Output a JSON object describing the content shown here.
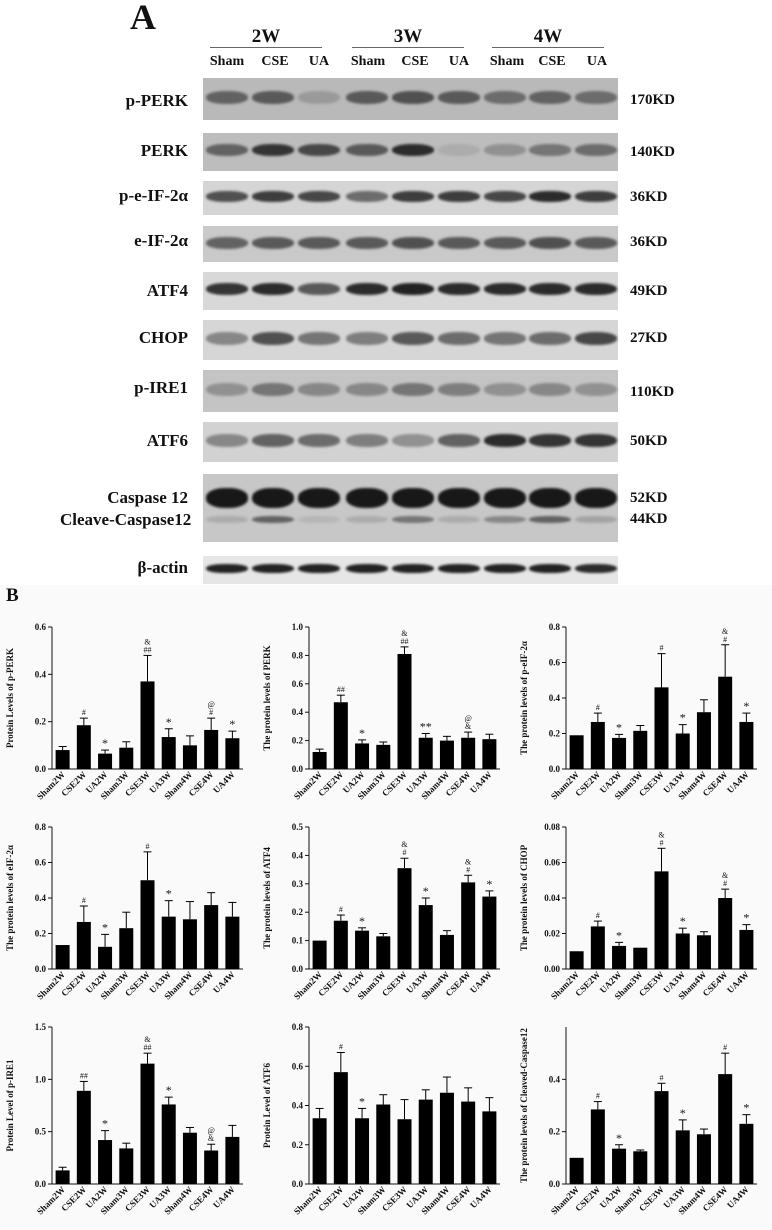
{
  "panels": {
    "a": "A",
    "b": "B"
  },
  "blot": {
    "weeks": [
      "2W",
      "3W",
      "4W"
    ],
    "groups": [
      "Sham",
      "CSE",
      "UA",
      "Sham",
      "CSE",
      "UA",
      "Sham",
      "CSE",
      "UA"
    ],
    "rows": [
      {
        "protein": "p-PERK",
        "kd": "170KD",
        "intensity": [
          0.55,
          0.6,
          0.25,
          0.6,
          0.65,
          0.6,
          0.5,
          0.55,
          0.5
        ]
      },
      {
        "protein": "PERK",
        "kd": "140KD",
        "intensity": [
          0.55,
          0.8,
          0.7,
          0.6,
          0.85,
          0.15,
          0.3,
          0.45,
          0.5
        ]
      },
      {
        "protein": "p-e-IF-2α",
        "kd": "36KD",
        "intensity": [
          0.65,
          0.75,
          0.7,
          0.5,
          0.75,
          0.75,
          0.7,
          0.85,
          0.75
        ]
      },
      {
        "protein": "e-IF-2α",
        "kd": "36KD",
        "intensity": [
          0.55,
          0.6,
          0.6,
          0.6,
          0.65,
          0.6,
          0.6,
          0.65,
          0.6
        ]
      },
      {
        "protein": "ATF4",
        "kd": "49KD",
        "intensity": [
          0.8,
          0.85,
          0.6,
          0.85,
          0.9,
          0.85,
          0.85,
          0.85,
          0.85
        ]
      },
      {
        "protein": "CHOP",
        "kd": "27KD",
        "intensity": [
          0.35,
          0.65,
          0.45,
          0.4,
          0.6,
          0.5,
          0.45,
          0.5,
          0.7
        ]
      },
      {
        "protein": "p-IRE1",
        "kd": "110KD",
        "intensity": [
          0.3,
          0.45,
          0.35,
          0.35,
          0.45,
          0.4,
          0.3,
          0.35,
          0.3
        ]
      },
      {
        "protein": "ATF6",
        "kd": "50KD",
        "intensity": [
          0.35,
          0.55,
          0.5,
          0.4,
          0.3,
          0.55,
          0.85,
          0.8,
          0.8
        ]
      },
      {
        "protein": "Caspase 12",
        "kd": "52KD",
        "intensity": [
          0.95,
          0.95,
          0.95,
          0.95,
          0.95,
          0.95,
          0.95,
          0.95,
          0.95
        ]
      },
      {
        "protein": "Cleave-Caspase12",
        "kd": "44KD",
        "intensity": [
          0.15,
          0.55,
          0.1,
          0.15,
          0.45,
          0.15,
          0.35,
          0.55,
          0.2
        ]
      },
      {
        "protein": "β-actin",
        "kd": "",
        "intensity": [
          0.9,
          0.9,
          0.9,
          0.9,
          0.9,
          0.9,
          0.9,
          0.9,
          0.85
        ]
      }
    ]
  },
  "chart_data": [
    {
      "type": "bar",
      "ylabel": "Protein Levels of p-PERK",
      "ylim": [
        0,
        0.6
      ],
      "yticks": [
        "0.0",
        "0.2",
        "0.4",
        "0.6"
      ],
      "categories": [
        "Sham2W",
        "CSE2W",
        "UA2W",
        "Sham3W",
        "CSE3W",
        "UA3W",
        "Sham4W",
        "CSE4W",
        "UA4W"
      ],
      "values": [
        0.08,
        0.185,
        0.065,
        0.09,
        0.37,
        0.135,
        0.1,
        0.165,
        0.13
      ],
      "errors": [
        0.015,
        0.03,
        0.015,
        0.025,
        0.11,
        0.035,
        0.04,
        0.05,
        0.03
      ],
      "annotations": [
        "",
        "#",
        "*",
        "",
        "&\n##",
        "*",
        "",
        "@\n#",
        "*"
      ]
    },
    {
      "type": "bar",
      "ylabel": "The protein levels of PERK",
      "ylim": [
        0,
        1.0
      ],
      "yticks": [
        "0.0",
        "0.2",
        "0.4",
        "0.6",
        "0.8",
        "1.0"
      ],
      "categories": [
        "Sham2W",
        "CSE2W",
        "UA2W",
        "Sham3W",
        "CSE3W",
        "UA3W",
        "Sham4W",
        "CSE4W",
        "UA4W"
      ],
      "values": [
        0.12,
        0.47,
        0.18,
        0.17,
        0.81,
        0.22,
        0.2,
        0.22,
        0.21
      ],
      "errors": [
        0.02,
        0.05,
        0.025,
        0.02,
        0.05,
        0.03,
        0.03,
        0.04,
        0.035
      ],
      "annotations": [
        "",
        "##",
        "*",
        "",
        "&\n##",
        "**",
        "",
        "@\n&",
        ""
      ]
    },
    {
      "type": "bar",
      "ylabel": "The protein levels of p-eIF-2α",
      "ylim": [
        0,
        0.8
      ],
      "yticks": [
        "0.0",
        "0.2",
        "0.4",
        "0.6",
        "0.8"
      ],
      "categories": [
        "Sham2W",
        "CSE2W",
        "UA2W",
        "Sham3W",
        "CSE3W",
        "UA3W",
        "Sham4W",
        "CSE4W",
        "UA4W"
      ],
      "values": [
        0.19,
        0.265,
        0.175,
        0.215,
        0.46,
        0.2,
        0.32,
        0.52,
        0.265
      ],
      "errors": [
        0.0,
        0.05,
        0.02,
        0.03,
        0.19,
        0.05,
        0.07,
        0.18,
        0.05
      ],
      "annotations": [
        "",
        "#",
        "*",
        "",
        "#",
        "*",
        "",
        "&\n#",
        "*"
      ]
    },
    {
      "type": "bar",
      "ylabel": "The protein levels of eIF-2α",
      "ylim": [
        0,
        0.8
      ],
      "yticks": [
        "0.0",
        "0.2",
        "0.4",
        "0.6",
        "0.8"
      ],
      "categories": [
        "Sham2W",
        "CSE2W",
        "UA2W",
        "Sham3W",
        "CSE3W",
        "UA3W",
        "Sham4W",
        "CSE4W",
        "UA4W"
      ],
      "values": [
        0.135,
        0.265,
        0.125,
        0.23,
        0.5,
        0.295,
        0.28,
        0.36,
        0.295
      ],
      "errors": [
        0.0,
        0.09,
        0.07,
        0.09,
        0.16,
        0.09,
        0.1,
        0.07,
        0.08
      ],
      "annotations": [
        "",
        "#",
        "*",
        "",
        "#",
        "*",
        "",
        "",
        ""
      ]
    },
    {
      "type": "bar",
      "ylabel": "The protein levels of ATF4",
      "ylim": [
        0,
        0.5
      ],
      "yticks": [
        "0.0",
        "0.1",
        "0.2",
        "0.3",
        "0.4",
        "0.5"
      ],
      "categories": [
        "Sham2W",
        "CSE2W",
        "UA2W",
        "Sham3W",
        "CSE3W",
        "UA3W",
        "Sham4W",
        "CSE4W",
        "UA4W"
      ],
      "values": [
        0.1,
        0.17,
        0.135,
        0.115,
        0.355,
        0.225,
        0.12,
        0.305,
        0.255
      ],
      "errors": [
        0.0,
        0.02,
        0.01,
        0.01,
        0.035,
        0.025,
        0.015,
        0.025,
        0.02
      ],
      "annotations": [
        "",
        "#",
        "*",
        "",
        "&\n#",
        "*",
        "",
        "&\n#",
        "*"
      ]
    },
    {
      "type": "bar",
      "ylabel": "The protein levels of CHOP",
      "ylim": [
        0,
        0.08
      ],
      "yticks": [
        "0.00",
        "0.02",
        "0.04",
        "0.06",
        "0.08"
      ],
      "categories": [
        "Sham2W",
        "CSE2W",
        "UA2W",
        "Sham3W",
        "CSE3W",
        "UA3W",
        "Sham4W",
        "CSE4W",
        "UA4W"
      ],
      "values": [
        0.01,
        0.024,
        0.013,
        0.012,
        0.055,
        0.02,
        0.019,
        0.04,
        0.022
      ],
      "errors": [
        0.0,
        0.003,
        0.002,
        0.0,
        0.013,
        0.003,
        0.002,
        0.005,
        0.003
      ],
      "annotations": [
        "",
        "#",
        "*",
        "",
        "&\n#",
        "*",
        "",
        "&\n#",
        "*"
      ]
    },
    {
      "type": "bar",
      "ylabel": "Protein Level of p-IRE1",
      "ylim": [
        0,
        1.5
      ],
      "yticks": [
        "0.0",
        "0.5",
        "1.0",
        "1.5"
      ],
      "categories": [
        "Sham2W",
        "CSE2W",
        "UA2W",
        "Sham3W",
        "CSE3W",
        "UA3W",
        "Sham4W",
        "CSE4W",
        "UA4W"
      ],
      "values": [
        0.13,
        0.89,
        0.42,
        0.34,
        1.15,
        0.76,
        0.49,
        0.32,
        0.45
      ],
      "errors": [
        0.03,
        0.09,
        0.09,
        0.05,
        0.1,
        0.07,
        0.05,
        0.06,
        0.11
      ],
      "annotations": [
        "",
        "##",
        "*",
        "",
        "&\n##",
        "*",
        "",
        "@\n&",
        ""
      ]
    },
    {
      "type": "bar",
      "ylabel": "Protein Level of ATF6",
      "ylim": [
        0,
        0.8
      ],
      "yticks": [
        "0.0",
        "0.2",
        "0.4",
        "0.6",
        "0.8"
      ],
      "categories": [
        "Sham2W",
        "CSE2W",
        "UA2W",
        "Sham3W",
        "CSE3W",
        "UA3W",
        "Sham4W",
        "CSE4W",
        "UA4W"
      ],
      "values": [
        0.335,
        0.57,
        0.335,
        0.405,
        0.33,
        0.43,
        0.465,
        0.42,
        0.37
      ],
      "errors": [
        0.05,
        0.1,
        0.05,
        0.05,
        0.1,
        0.05,
        0.08,
        0.07,
        0.07
      ],
      "annotations": [
        "",
        "#",
        "*",
        "",
        "",
        "",
        "",
        "",
        ""
      ]
    },
    {
      "type": "bar",
      "ylabel": "The protein levels of Cleaved-Caspase12",
      "ylim": [
        0,
        0.6
      ],
      "yticks": [
        "0.0",
        "0.2",
        "0.4"
      ],
      "categories": [
        "Sham2W",
        "CSE2W",
        "UA2W",
        "Sham3W",
        "CSE3W",
        "UA3W",
        "Sham4W",
        "CSE4W",
        "UA4W"
      ],
      "values": [
        0.1,
        0.285,
        0.135,
        0.125,
        0.355,
        0.205,
        0.19,
        0.42,
        0.23
      ],
      "errors": [
        0.0,
        0.03,
        0.015,
        0.005,
        0.03,
        0.04,
        0.02,
        0.08,
        0.035
      ],
      "annotations": [
        "",
        "#",
        "*",
        "",
        "#",
        "*",
        "",
        "#",
        "*"
      ]
    }
  ]
}
